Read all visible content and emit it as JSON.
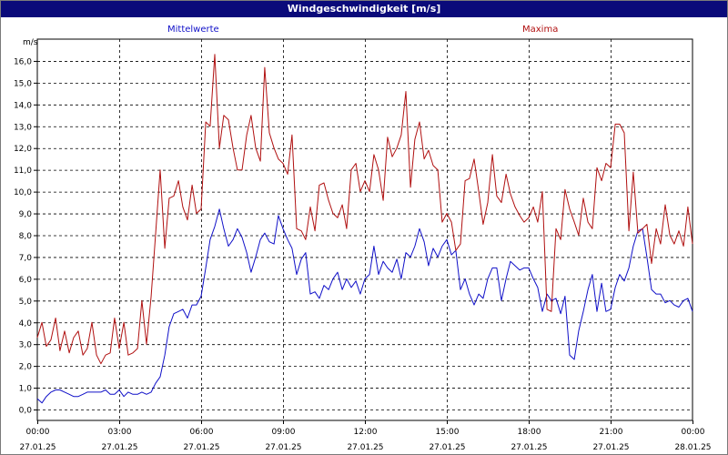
{
  "window": {
    "title": "Windgeschwindigkeit [m/s]"
  },
  "colors": {
    "mean": "#1010c8",
    "max": "#b01010",
    "title_bg": "#0a0a7a",
    "grid": "#000000"
  },
  "chart_data": {
    "type": "line",
    "title": "Windgeschwindigkeit [m/s]",
    "ylabel": "m/s",
    "xlabel": "",
    "ylim": [
      -0.5,
      17.0
    ],
    "xlim": [
      "27.01.25 00:00",
      "28.01.25 00:00"
    ],
    "yticks": [
      "0,0",
      "1,0",
      "2,0",
      "3,0",
      "4,0",
      "5,0",
      "6,0",
      "7,0",
      "8,0",
      "9,0",
      "10,0",
      "11,0",
      "12,0",
      "13,0",
      "14,0",
      "15,0",
      "16,0"
    ],
    "xticks": [
      {
        "time": "00:00",
        "date": "27.01.25"
      },
      {
        "time": "03:00",
        "date": "27.01.25"
      },
      {
        "time": "06:00",
        "date": "27.01.25"
      },
      {
        "time": "09:00",
        "date": "27.01.25"
      },
      {
        "time": "12:00",
        "date": "27.01.25"
      },
      {
        "time": "15:00",
        "date": "27.01.25"
      },
      {
        "time": "18:00",
        "date": "27.01.25"
      },
      {
        "time": "21:00",
        "date": "27.01.25"
      },
      {
        "time": "00:00",
        "date": "28.01.25"
      }
    ],
    "grid": true,
    "x_unit": "hours after 27.01.25 00:00",
    "series": [
      {
        "name": "Mittelwerte",
        "color": "#1010c8",
        "points": [
          [
            0.0,
            0.5
          ],
          [
            0.17,
            0.3
          ],
          [
            0.33,
            0.6
          ],
          [
            0.5,
            0.8
          ],
          [
            0.67,
            0.9
          ],
          [
            0.83,
            0.9
          ],
          [
            1.0,
            0.8
          ],
          [
            1.17,
            0.7
          ],
          [
            1.33,
            0.6
          ],
          [
            1.5,
            0.6
          ],
          [
            1.67,
            0.7
          ],
          [
            1.83,
            0.8
          ],
          [
            2.0,
            0.8
          ],
          [
            2.17,
            0.8
          ],
          [
            2.33,
            0.8
          ],
          [
            2.5,
            0.9
          ],
          [
            2.67,
            0.7
          ],
          [
            2.83,
            0.7
          ],
          [
            3.0,
            0.9
          ],
          [
            3.17,
            0.6
          ],
          [
            3.33,
            0.8
          ],
          [
            3.5,
            0.7
          ],
          [
            3.67,
            0.7
          ],
          [
            3.83,
            0.8
          ],
          [
            4.0,
            0.7
          ],
          [
            4.17,
            0.8
          ],
          [
            4.33,
            1.2
          ],
          [
            4.5,
            1.5
          ],
          [
            4.67,
            2.5
          ],
          [
            4.83,
            3.8
          ],
          [
            5.0,
            4.4
          ],
          [
            5.17,
            4.5
          ],
          [
            5.33,
            4.6
          ],
          [
            5.5,
            4.2
          ],
          [
            5.67,
            4.8
          ],
          [
            5.83,
            4.8
          ],
          [
            6.0,
            5.2
          ],
          [
            6.17,
            6.5
          ],
          [
            6.33,
            7.8
          ],
          [
            6.5,
            8.4
          ],
          [
            6.67,
            9.2
          ],
          [
            6.83,
            8.3
          ],
          [
            7.0,
            7.5
          ],
          [
            7.17,
            7.8
          ],
          [
            7.33,
            8.3
          ],
          [
            7.5,
            7.9
          ],
          [
            7.67,
            7.2
          ],
          [
            7.83,
            6.3
          ],
          [
            8.0,
            7.0
          ],
          [
            8.17,
            7.8
          ],
          [
            8.33,
            8.1
          ],
          [
            8.5,
            7.7
          ],
          [
            8.67,
            7.6
          ],
          [
            8.83,
            8.9
          ],
          [
            9.0,
            8.3
          ],
          [
            9.17,
            7.8
          ],
          [
            9.33,
            7.4
          ],
          [
            9.5,
            6.2
          ],
          [
            9.67,
            6.9
          ],
          [
            9.83,
            7.2
          ],
          [
            10.0,
            5.3
          ],
          [
            10.17,
            5.4
          ],
          [
            10.33,
            5.1
          ],
          [
            10.5,
            5.7
          ],
          [
            10.67,
            5.5
          ],
          [
            10.83,
            6.0
          ],
          [
            11.0,
            6.3
          ],
          [
            11.17,
            5.5
          ],
          [
            11.33,
            6.0
          ],
          [
            11.5,
            5.6
          ],
          [
            11.67,
            5.9
          ],
          [
            11.83,
            5.3
          ],
          [
            12.0,
            6.0
          ],
          [
            12.17,
            6.2
          ],
          [
            12.33,
            7.5
          ],
          [
            12.5,
            6.2
          ],
          [
            12.67,
            6.8
          ],
          [
            12.83,
            6.5
          ],
          [
            13.0,
            6.3
          ],
          [
            13.17,
            6.9
          ],
          [
            13.33,
            6.0
          ],
          [
            13.5,
            7.2
          ],
          [
            13.67,
            7.0
          ],
          [
            13.83,
            7.5
          ],
          [
            14.0,
            8.3
          ],
          [
            14.17,
            7.7
          ],
          [
            14.33,
            6.6
          ],
          [
            14.5,
            7.4
          ],
          [
            14.67,
            7.0
          ],
          [
            14.83,
            7.5
          ],
          [
            15.0,
            7.8
          ],
          [
            15.17,
            7.1
          ],
          [
            15.33,
            7.3
          ],
          [
            15.5,
            5.5
          ],
          [
            15.67,
            6.0
          ],
          [
            15.83,
            5.3
          ],
          [
            16.0,
            4.8
          ],
          [
            16.17,
            5.3
          ],
          [
            16.33,
            5.1
          ],
          [
            16.5,
            6.0
          ],
          [
            16.67,
            6.5
          ],
          [
            16.83,
            6.5
          ],
          [
            17.0,
            5.0
          ],
          [
            17.17,
            6.0
          ],
          [
            17.33,
            6.8
          ],
          [
            17.5,
            6.6
          ],
          [
            17.67,
            6.4
          ],
          [
            17.83,
            6.5
          ],
          [
            18.0,
            6.5
          ],
          [
            18.17,
            6.0
          ],
          [
            18.33,
            5.6
          ],
          [
            18.5,
            4.5
          ],
          [
            18.67,
            5.3
          ],
          [
            18.83,
            5.0
          ],
          [
            19.0,
            5.1
          ],
          [
            19.17,
            4.4
          ],
          [
            19.33,
            5.2
          ],
          [
            19.5,
            2.5
          ],
          [
            19.67,
            2.3
          ],
          [
            19.83,
            3.6
          ],
          [
            20.0,
            4.5
          ],
          [
            20.17,
            5.5
          ],
          [
            20.33,
            6.2
          ],
          [
            20.5,
            4.5
          ],
          [
            20.67,
            5.8
          ],
          [
            20.83,
            4.5
          ],
          [
            21.0,
            4.6
          ],
          [
            21.17,
            5.6
          ],
          [
            21.33,
            6.2
          ],
          [
            21.5,
            5.9
          ],
          [
            21.67,
            6.5
          ],
          [
            21.83,
            7.5
          ],
          [
            22.0,
            8.2
          ],
          [
            22.17,
            8.3
          ],
          [
            22.33,
            7.0
          ],
          [
            22.5,
            5.5
          ],
          [
            22.67,
            5.3
          ],
          [
            22.83,
            5.3
          ],
          [
            23.0,
            4.9
          ],
          [
            23.17,
            5.0
          ],
          [
            23.33,
            4.8
          ],
          [
            23.5,
            4.7
          ],
          [
            23.67,
            5.0
          ],
          [
            23.83,
            5.1
          ],
          [
            24.0,
            4.5
          ]
        ]
      },
      {
        "name": "Maxima",
        "color": "#b01010",
        "points": [
          [
            0.0,
            3.3
          ],
          [
            0.17,
            4.0
          ],
          [
            0.33,
            2.9
          ],
          [
            0.5,
            3.2
          ],
          [
            0.67,
            4.2
          ],
          [
            0.83,
            2.7
          ],
          [
            1.0,
            3.6
          ],
          [
            1.17,
            2.6
          ],
          [
            1.33,
            3.3
          ],
          [
            1.5,
            3.6
          ],
          [
            1.67,
            2.5
          ],
          [
            1.83,
            2.8
          ],
          [
            2.0,
            4.0
          ],
          [
            2.17,
            2.5
          ],
          [
            2.33,
            2.1
          ],
          [
            2.5,
            2.5
          ],
          [
            2.67,
            2.6
          ],
          [
            2.83,
            4.2
          ],
          [
            3.0,
            2.8
          ],
          [
            3.17,
            4.0
          ],
          [
            3.33,
            2.5
          ],
          [
            3.5,
            2.6
          ],
          [
            3.67,
            2.8
          ],
          [
            3.83,
            5.0
          ],
          [
            4.0,
            3.0
          ],
          [
            4.17,
            5.2
          ],
          [
            4.33,
            8.0
          ],
          [
            4.5,
            11.0
          ],
          [
            4.67,
            7.4
          ],
          [
            4.83,
            9.7
          ],
          [
            5.0,
            9.8
          ],
          [
            5.17,
            10.5
          ],
          [
            5.33,
            9.3
          ],
          [
            5.5,
            8.7
          ],
          [
            5.67,
            10.3
          ],
          [
            5.83,
            9.0
          ],
          [
            6.0,
            9.2
          ],
          [
            6.17,
            13.2
          ],
          [
            6.33,
            13.0
          ],
          [
            6.5,
            16.3
          ],
          [
            6.67,
            12.0
          ],
          [
            6.83,
            13.5
          ],
          [
            7.0,
            13.3
          ],
          [
            7.17,
            12.0
          ],
          [
            7.33,
            11.0
          ],
          [
            7.5,
            11.0
          ],
          [
            7.67,
            12.6
          ],
          [
            7.83,
            13.5
          ],
          [
            8.0,
            12.0
          ],
          [
            8.17,
            11.4
          ],
          [
            8.33,
            15.7
          ],
          [
            8.5,
            12.7
          ],
          [
            8.67,
            12.0
          ],
          [
            8.83,
            11.5
          ],
          [
            9.0,
            11.3
          ],
          [
            9.17,
            10.8
          ],
          [
            9.33,
            12.6
          ],
          [
            9.5,
            8.3
          ],
          [
            9.67,
            8.2
          ],
          [
            9.83,
            7.8
          ],
          [
            10.0,
            9.3
          ],
          [
            10.17,
            8.2
          ],
          [
            10.33,
            10.3
          ],
          [
            10.5,
            10.4
          ],
          [
            10.67,
            9.6
          ],
          [
            10.83,
            9.0
          ],
          [
            11.0,
            8.8
          ],
          [
            11.17,
            9.4
          ],
          [
            11.33,
            8.3
          ],
          [
            11.5,
            11.0
          ],
          [
            11.67,
            11.3
          ],
          [
            11.83,
            10.0
          ],
          [
            12.0,
            10.5
          ],
          [
            12.17,
            10.0
          ],
          [
            12.33,
            11.7
          ],
          [
            12.5,
            11.0
          ],
          [
            12.67,
            9.6
          ],
          [
            12.83,
            12.5
          ],
          [
            13.0,
            11.6
          ],
          [
            13.17,
            12.0
          ],
          [
            13.33,
            12.6
          ],
          [
            13.5,
            14.6
          ],
          [
            13.67,
            10.2
          ],
          [
            13.83,
            12.4
          ],
          [
            14.0,
            13.2
          ],
          [
            14.17,
            11.5
          ],
          [
            14.33,
            11.9
          ],
          [
            14.5,
            11.2
          ],
          [
            14.67,
            11.0
          ],
          [
            14.83,
            8.6
          ],
          [
            15.0,
            9.0
          ],
          [
            15.17,
            8.6
          ],
          [
            15.33,
            7.3
          ],
          [
            15.5,
            7.6
          ],
          [
            15.67,
            10.5
          ],
          [
            15.83,
            10.6
          ],
          [
            16.0,
            11.5
          ],
          [
            16.17,
            10.0
          ],
          [
            16.33,
            8.5
          ],
          [
            16.5,
            9.5
          ],
          [
            16.67,
            11.7
          ],
          [
            16.83,
            9.8
          ],
          [
            17.0,
            9.5
          ],
          [
            17.17,
            10.8
          ],
          [
            17.33,
            9.9
          ],
          [
            17.5,
            9.3
          ],
          [
            17.67,
            8.9
          ],
          [
            17.83,
            8.6
          ],
          [
            18.0,
            8.8
          ],
          [
            18.17,
            9.3
          ],
          [
            18.33,
            8.6
          ],
          [
            18.5,
            10.0
          ],
          [
            18.67,
            4.6
          ],
          [
            18.83,
            4.5
          ],
          [
            19.0,
            8.3
          ],
          [
            19.17,
            7.8
          ],
          [
            19.33,
            10.1
          ],
          [
            19.5,
            9.2
          ],
          [
            19.67,
            8.6
          ],
          [
            19.83,
            8.0
          ],
          [
            20.0,
            9.7
          ],
          [
            20.17,
            8.6
          ],
          [
            20.33,
            8.3
          ],
          [
            20.5,
            11.1
          ],
          [
            20.67,
            10.5
          ],
          [
            20.83,
            11.3
          ],
          [
            21.0,
            11.1
          ],
          [
            21.17,
            13.1
          ],
          [
            21.33,
            13.1
          ],
          [
            21.5,
            12.7
          ],
          [
            21.67,
            8.2
          ],
          [
            21.83,
            10.9
          ],
          [
            22.0,
            8.1
          ],
          [
            22.17,
            8.3
          ],
          [
            22.33,
            8.5
          ],
          [
            22.5,
            6.7
          ],
          [
            22.67,
            8.3
          ],
          [
            22.83,
            7.6
          ],
          [
            23.0,
            9.4
          ],
          [
            23.17,
            8.0
          ],
          [
            23.33,
            7.6
          ],
          [
            23.5,
            8.2
          ],
          [
            23.67,
            7.5
          ],
          [
            23.83,
            9.3
          ],
          [
            24.0,
            7.6
          ]
        ]
      }
    ]
  }
}
